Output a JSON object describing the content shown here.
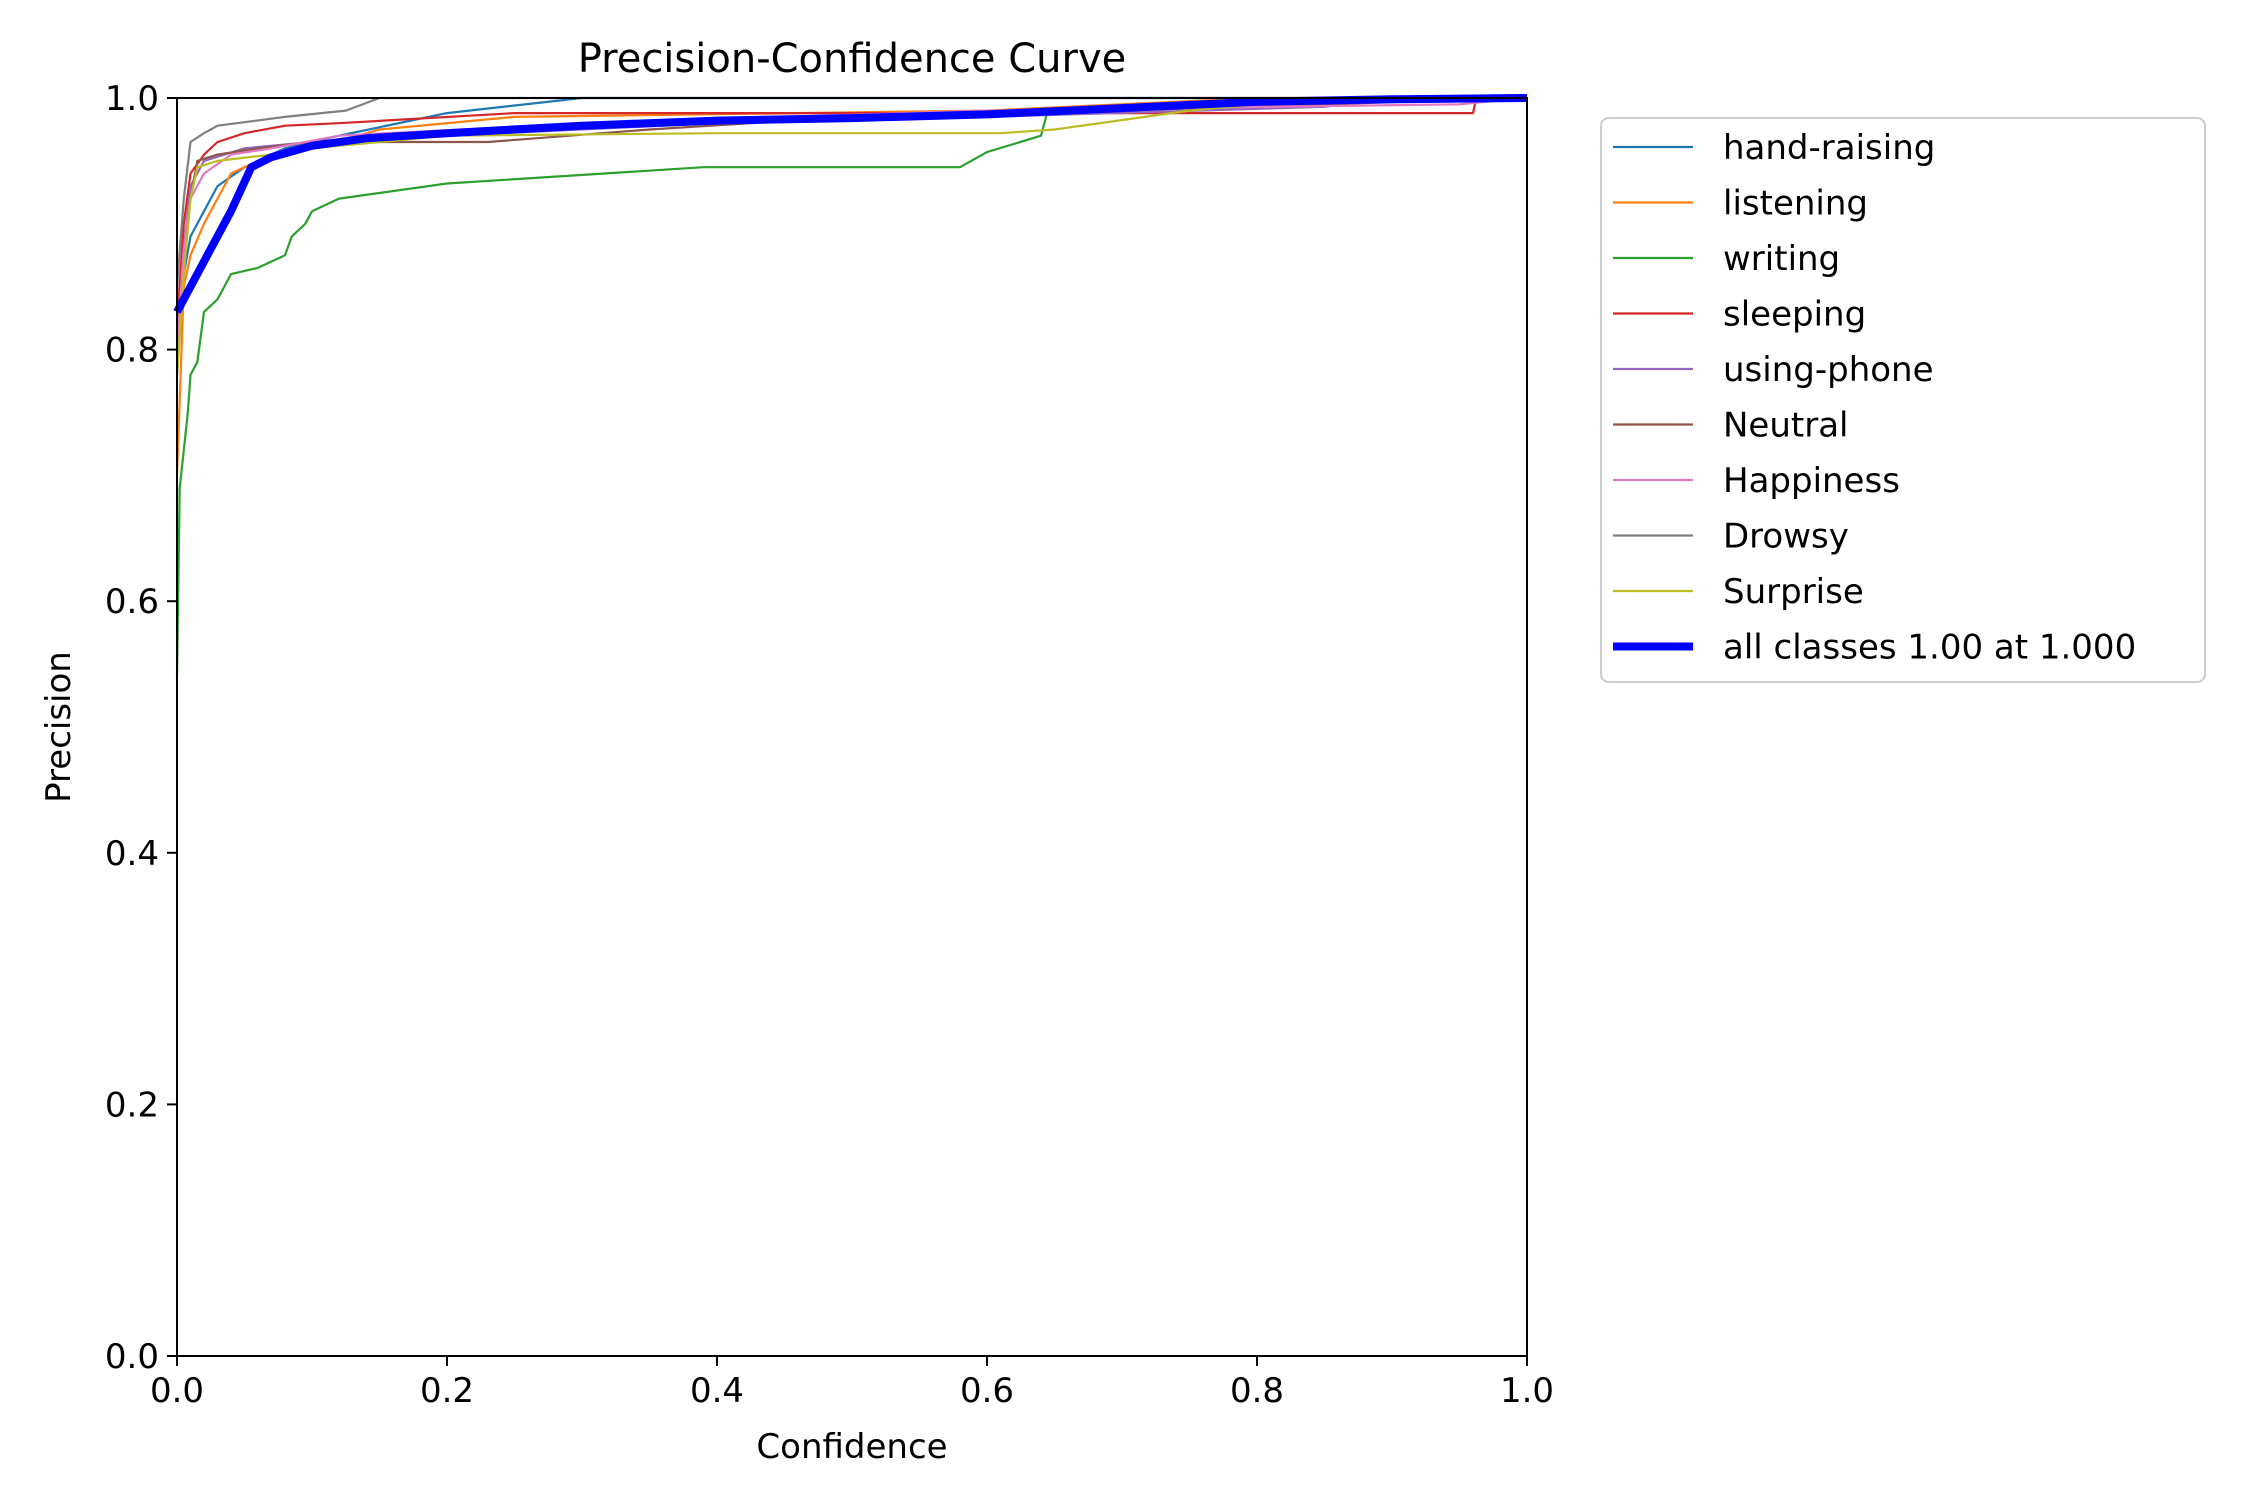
{
  "chart_data": {
    "type": "line",
    "title": "Precision-Confidence Curve",
    "xlabel": "Confidence",
    "ylabel": "Precision",
    "xlim": [
      0,
      1
    ],
    "ylim": [
      0,
      1
    ],
    "xticks": [
      "0.0",
      "0.2",
      "0.4",
      "0.6",
      "0.8",
      "1.0"
    ],
    "yticks": [
      "0.0",
      "0.2",
      "0.4",
      "0.6",
      "0.8",
      "1.0"
    ],
    "grid": false,
    "legend_position": "outside-right",
    "series": [
      {
        "name": "hand-raising",
        "color": "#1f77b4",
        "width": "thin",
        "points": [
          [
            0,
            0.78
          ],
          [
            0.005,
            0.86
          ],
          [
            0.01,
            0.89
          ],
          [
            0.02,
            0.91
          ],
          [
            0.03,
            0.93
          ],
          [
            0.05,
            0.945
          ],
          [
            0.08,
            0.96
          ],
          [
            0.12,
            0.97
          ],
          [
            0.2,
            0.988
          ],
          [
            0.3,
            1.0
          ],
          [
            1.0,
            1.0
          ]
        ]
      },
      {
        "name": "listening",
        "color": "#ff7f0e",
        "width": "thin",
        "points": [
          [
            0,
            0.7
          ],
          [
            0.005,
            0.85
          ],
          [
            0.01,
            0.875
          ],
          [
            0.02,
            0.9
          ],
          [
            0.04,
            0.94
          ],
          [
            0.06,
            0.95
          ],
          [
            0.1,
            0.96
          ],
          [
            0.15,
            0.975
          ],
          [
            0.25,
            0.985
          ],
          [
            0.6,
            0.99
          ],
          [
            0.8,
            1.0
          ],
          [
            1.0,
            1.0
          ]
        ]
      },
      {
        "name": "writing",
        "color": "#2ca02c",
        "width": "thin",
        "points": [
          [
            0,
            0.54
          ],
          [
            0.002,
            0.69
          ],
          [
            0.005,
            0.72
          ],
          [
            0.008,
            0.75
          ],
          [
            0.01,
            0.78
          ],
          [
            0.015,
            0.79
          ],
          [
            0.02,
            0.83
          ],
          [
            0.03,
            0.84
          ],
          [
            0.04,
            0.86
          ],
          [
            0.06,
            0.865
          ],
          [
            0.08,
            0.875
          ],
          [
            0.085,
            0.89
          ],
          [
            0.095,
            0.9
          ],
          [
            0.1,
            0.91
          ],
          [
            0.12,
            0.92
          ],
          [
            0.2,
            0.932
          ],
          [
            0.39,
            0.945
          ],
          [
            0.58,
            0.945
          ],
          [
            0.6,
            0.957
          ],
          [
            0.64,
            0.97
          ],
          [
            0.645,
            0.99
          ],
          [
            0.8,
            0.995
          ],
          [
            1.0,
            1.0
          ]
        ]
      },
      {
        "name": "sleeping",
        "color": "#d62728",
        "width": "thin",
        "points": [
          [
            0,
            0.82
          ],
          [
            0.005,
            0.9
          ],
          [
            0.01,
            0.94
          ],
          [
            0.02,
            0.955
          ],
          [
            0.03,
            0.965
          ],
          [
            0.05,
            0.972
          ],
          [
            0.08,
            0.978
          ],
          [
            0.12,
            0.98
          ],
          [
            0.25,
            0.988
          ],
          [
            0.5,
            0.988
          ],
          [
            0.7,
            0.988
          ],
          [
            0.96,
            0.988
          ],
          [
            0.962,
            0.998
          ],
          [
            1.0,
            1.0
          ]
        ]
      },
      {
        "name": "using-phone",
        "color": "#9467bd",
        "width": "thin",
        "points": [
          [
            0,
            0.8
          ],
          [
            0.005,
            0.88
          ],
          [
            0.01,
            0.93
          ],
          [
            0.02,
            0.95
          ],
          [
            0.05,
            0.96
          ],
          [
            0.1,
            0.965
          ],
          [
            0.2,
            0.97
          ],
          [
            0.4,
            0.98
          ],
          [
            0.6,
            0.985
          ],
          [
            0.85,
            0.993
          ],
          [
            0.9,
            1.0
          ],
          [
            1.0,
            1.0
          ]
        ]
      },
      {
        "name": "Neutral",
        "color": "#8c564b",
        "width": "thin",
        "points": [
          [
            0,
            0.82
          ],
          [
            0.01,
            0.92
          ],
          [
            0.015,
            0.95
          ],
          [
            0.03,
            0.955
          ],
          [
            0.06,
            0.96
          ],
          [
            0.1,
            0.965
          ],
          [
            0.23,
            0.965
          ],
          [
            0.35,
            0.975
          ],
          [
            0.5,
            0.985
          ],
          [
            0.7,
            0.99
          ],
          [
            1.0,
            1.0
          ]
        ]
      },
      {
        "name": "Happiness",
        "color": "#e377c2",
        "width": "thin",
        "points": [
          [
            0,
            0.8
          ],
          [
            0.005,
            0.88
          ],
          [
            0.01,
            0.92
          ],
          [
            0.02,
            0.94
          ],
          [
            0.04,
            0.955
          ],
          [
            0.07,
            0.96
          ],
          [
            0.12,
            0.97
          ],
          [
            0.3,
            0.98
          ],
          [
            0.6,
            0.99
          ],
          [
            0.95,
            0.995
          ],
          [
            1.0,
            1.0
          ]
        ]
      },
      {
        "name": "Drowsy",
        "color": "#7f7f7f",
        "width": "thin",
        "points": [
          [
            0,
            0.85
          ],
          [
            0.005,
            0.92
          ],
          [
            0.01,
            0.965
          ],
          [
            0.02,
            0.972
          ],
          [
            0.03,
            0.978
          ],
          [
            0.08,
            0.985
          ],
          [
            0.125,
            0.99
          ],
          [
            0.15,
            1.0
          ],
          [
            1.0,
            1.0
          ]
        ]
      },
      {
        "name": "Surprise",
        "color": "#bcbd22",
        "width": "thin",
        "points": [
          [
            0,
            0.78
          ],
          [
            0.005,
            0.86
          ],
          [
            0.01,
            0.92
          ],
          [
            0.015,
            0.945
          ],
          [
            0.03,
            0.95
          ],
          [
            0.07,
            0.955
          ],
          [
            0.1,
            0.96
          ],
          [
            0.2,
            0.97
          ],
          [
            0.4,
            0.972
          ],
          [
            0.61,
            0.972
          ],
          [
            0.65,
            0.975
          ],
          [
            0.75,
            0.99
          ],
          [
            0.8,
            0.995
          ],
          [
            1.0,
            1.0
          ]
        ]
      },
      {
        "name": "all classes 1.00 at 1.000",
        "color": "#0000ff",
        "width": "thick",
        "points": [
          [
            0,
            0.83
          ],
          [
            0.02,
            0.87
          ],
          [
            0.04,
            0.91
          ],
          [
            0.055,
            0.945
          ],
          [
            0.07,
            0.953
          ],
          [
            0.1,
            0.962
          ],
          [
            0.14,
            0.968
          ],
          [
            0.2,
            0.972
          ],
          [
            0.3,
            0.978
          ],
          [
            0.4,
            0.982
          ],
          [
            0.5,
            0.984
          ],
          [
            0.6,
            0.987
          ],
          [
            0.7,
            0.992
          ],
          [
            0.8,
            0.997
          ],
          [
            0.9,
            0.999
          ],
          [
            1.0,
            1.0
          ]
        ]
      }
    ]
  }
}
